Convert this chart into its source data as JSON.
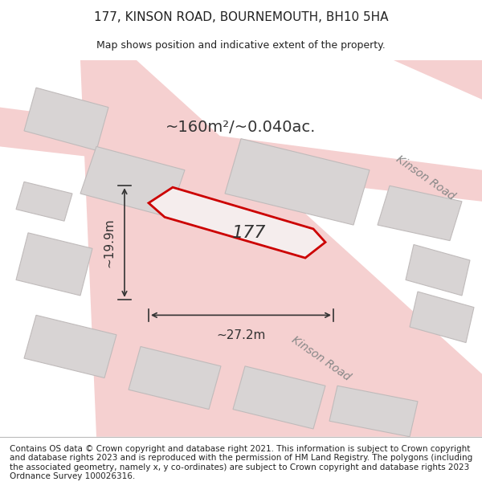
{
  "title": "177, KINSON ROAD, BOURNEMOUTH, BH10 5HA",
  "subtitle": "Map shows position and indicative extent of the property.",
  "area_text": "~160m²/~0.040ac.",
  "width_label": "~27.2m",
  "height_label": "~19.9m",
  "property_number": "177",
  "background_color": "#f0eeee",
  "map_bg_color": "#f5f3f3",
  "road_color": "#f5d0d0",
  "building_color": "#d8d4d4",
  "building_edge_color": "#c0bbbb",
  "highlight_color": "#e8e0e0",
  "property_polygon_color": "#cc0000",
  "property_fill_color": "#f5f0f0",
  "dimension_line_color": "#333333",
  "footer_text": "Contains OS data © Crown copyright and database right 2021. This information is subject to Crown copyright and database rights 2023 and is reproduced with the permission of HM Land Registry. The polygons (including the associated geometry, namely x, y co-ordinates) are subject to Crown copyright and database rights 2023 Ordnance Survey 100026316.",
  "kinson_road_label1": "Kinson Road",
  "kinson_road_label2": "Kinson Road",
  "footer_fontsize": 7.5,
  "title_fontsize": 11,
  "subtitle_fontsize": 9
}
